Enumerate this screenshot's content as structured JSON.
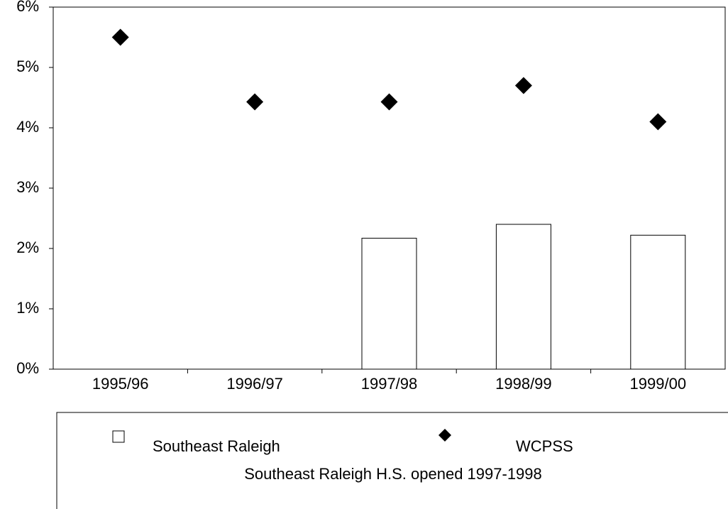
{
  "chart_data": {
    "type": "bar-line",
    "categories": [
      "1995/96",
      "1996/97",
      "1997/98",
      "1998/99",
      "1999/00"
    ],
    "series": [
      {
        "name": "Southeast Raleigh",
        "type": "bar",
        "color": "#ffffff",
        "values": [
          null,
          null,
          2.17,
          2.4,
          2.22
        ]
      },
      {
        "name": "WCPSS",
        "type": "line",
        "color": "#000000",
        "values": [
          5.5,
          4.43,
          4.43,
          4.7,
          4.1
        ]
      }
    ],
    "ylim": [
      0,
      6
    ],
    "yticks": [
      {
        "value": 0,
        "label": "0%"
      },
      {
        "value": 1,
        "label": "1%"
      },
      {
        "value": 2,
        "label": "2%"
      },
      {
        "value": 3,
        "label": "3%"
      },
      {
        "value": 4,
        "label": "4%"
      },
      {
        "value": 5,
        "label": "5%"
      },
      {
        "value": 6,
        "label": "6%"
      }
    ],
    "annotation": "Southeast Raleigh H.S. opened 1997-1998"
  }
}
